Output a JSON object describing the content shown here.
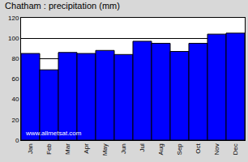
{
  "chart_data": {
    "type": "bar",
    "title": "Chatham : precipitation (mm)",
    "categories": [
      "Jan",
      "Feb",
      "Mar",
      "Apr",
      "May",
      "Jun",
      "Jul",
      "Aug",
      "Sep",
      "Oct",
      "Nov",
      "Dec"
    ],
    "values": [
      85,
      69,
      86,
      85,
      88,
      84,
      97,
      95,
      87,
      95,
      104,
      105
    ],
    "color": "#0000ff",
    "ylim": [
      0,
      120
    ],
    "yticks": [
      0,
      20,
      40,
      60,
      80,
      100,
      120
    ],
    "grid": true,
    "annotations": [
      "www.allmetsat.com"
    ]
  }
}
